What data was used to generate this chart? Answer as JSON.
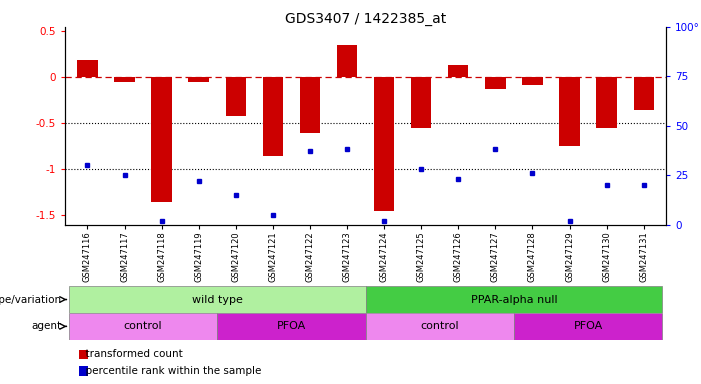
{
  "title": "GDS3407 / 1422385_at",
  "samples": [
    "GSM247116",
    "GSM247117",
    "GSM247118",
    "GSM247119",
    "GSM247120",
    "GSM247121",
    "GSM247122",
    "GSM247123",
    "GSM247124",
    "GSM247125",
    "GSM247126",
    "GSM247127",
    "GSM247128",
    "GSM247129",
    "GSM247130",
    "GSM247131"
  ],
  "bar_values": [
    0.19,
    -0.05,
    -1.35,
    -0.05,
    -0.42,
    -0.85,
    -0.6,
    0.35,
    -1.45,
    -0.55,
    0.14,
    -0.12,
    -0.08,
    -0.75,
    -0.55,
    -0.35
  ],
  "dot_pct": [
    30,
    25,
    2,
    22,
    15,
    5,
    37,
    38,
    2,
    28,
    23,
    38,
    26,
    2,
    20,
    20
  ],
  "bar_color": "#cc0000",
  "dot_color": "#0000cc",
  "ylim": [
    -1.6,
    0.55
  ],
  "y_left_ticks": [
    0.5,
    0.0,
    -0.5,
    -1.0,
    -1.5
  ],
  "y_left_labels": [
    "0.5",
    "0",
    "-0.5",
    "-1",
    "-1.5"
  ],
  "y_right_ticks": [
    100,
    75,
    50,
    25,
    0
  ],
  "y_right_labels": [
    "100°",
    "75",
    "50",
    "25",
    "0"
  ],
  "hline_y": 0.0,
  "dotted_line1": -0.5,
  "dotted_line2": -1.0,
  "genotype_groups": [
    {
      "label": "wild type",
      "start": 0,
      "end": 8,
      "color": "#b0f0a0"
    },
    {
      "label": "PPAR-alpha null",
      "start": 8,
      "end": 16,
      "color": "#44cc44"
    }
  ],
  "agent_groups": [
    {
      "label": "control",
      "start": 0,
      "end": 4,
      "color": "#ee88ee"
    },
    {
      "label": "PFOA",
      "start": 4,
      "end": 8,
      "color": "#cc22cc"
    },
    {
      "label": "control",
      "start": 8,
      "end": 12,
      "color": "#ee88ee"
    },
    {
      "label": "PFOA",
      "start": 12,
      "end": 16,
      "color": "#cc22cc"
    }
  ],
  "legend_bar_label": "transformed count",
  "legend_dot_label": "percentile rank within the sample",
  "xlabel_genotype": "genotype/variation",
  "xlabel_agent": "agent"
}
